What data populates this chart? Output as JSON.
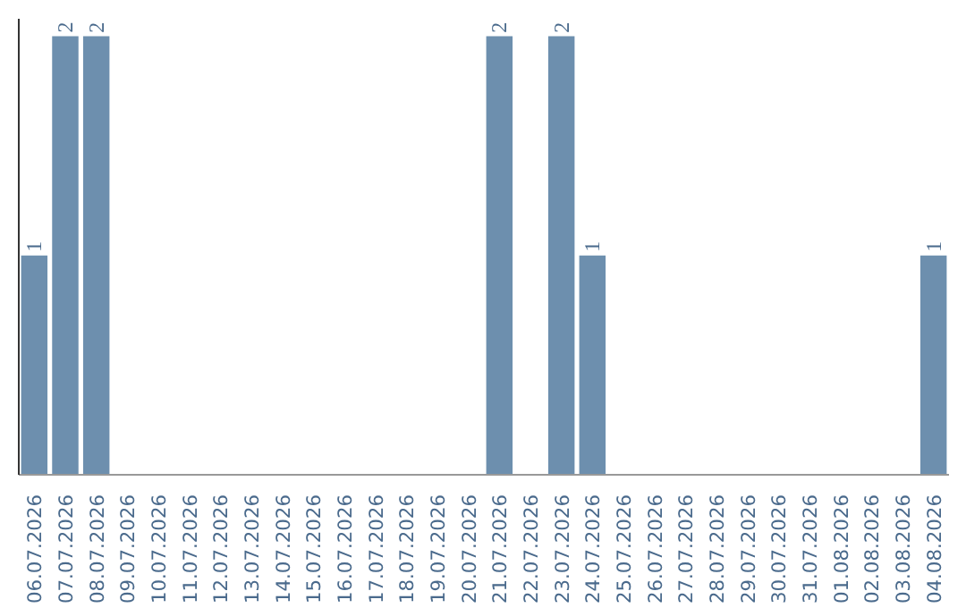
{
  "chart_data": {
    "type": "bar",
    "categories": [
      "06.07.2026",
      "07.07.2026",
      "08.07.2026",
      "09.07.2026",
      "10.07.2026",
      "11.07.2026",
      "12.07.2026",
      "13.07.2026",
      "14.07.2026",
      "15.07.2026",
      "16.07.2026",
      "17.07.2026",
      "18.07.2026",
      "19.07.2026",
      "20.07.2026",
      "21.07.2026",
      "22.07.2026",
      "23.07.2026",
      "24.07.2026",
      "25.07.2026",
      "26.07.2026",
      "27.07.2026",
      "28.07.2026",
      "29.07.2026",
      "30.07.2026",
      "31.07.2026",
      "01.08.2026",
      "02.08.2026",
      "03.08.2026",
      "04.08.2026"
    ],
    "values": [
      1,
      2,
      2,
      0,
      0,
      0,
      0,
      0,
      0,
      0,
      0,
      0,
      0,
      0,
      0,
      2,
      0,
      2,
      1,
      0,
      0,
      0,
      0,
      0,
      0,
      0,
      0,
      0,
      0,
      1
    ],
    "value_labels": [
      "1",
      "2",
      "2",
      null,
      null,
      null,
      null,
      null,
      null,
      null,
      null,
      null,
      null,
      null,
      null,
      "2",
      null,
      "2",
      "1",
      null,
      null,
      null,
      null,
      null,
      null,
      null,
      null,
      null,
      null,
      "1"
    ],
    "color": "#6d8fae",
    "ylim": [
      0,
      2.08
    ],
    "tick_labels": "x",
    "grid": false
  }
}
